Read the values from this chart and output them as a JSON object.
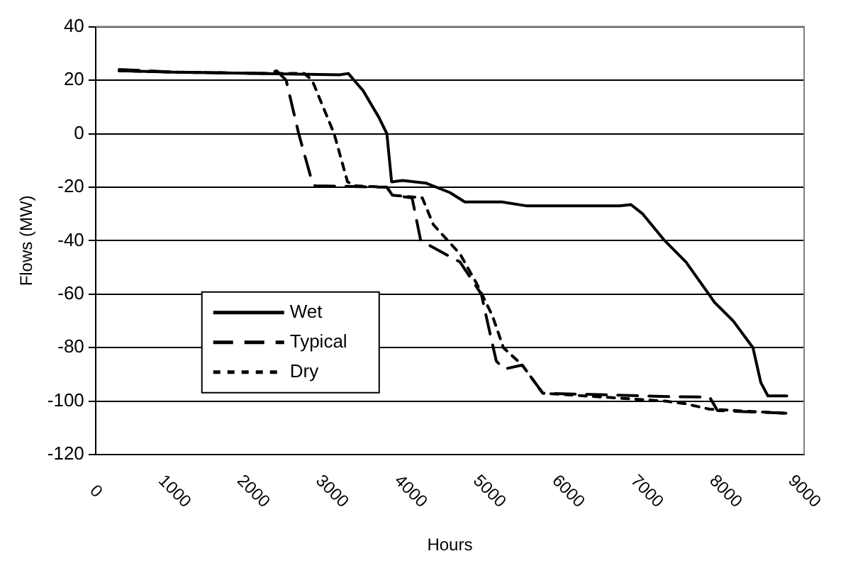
{
  "chart_data": {
    "type": "line",
    "xlabel": "Hours",
    "ylabel": "Flows (MW)",
    "xlim": [
      0,
      9000
    ],
    "xticks": [
      0,
      1000,
      2000,
      3000,
      4000,
      5000,
      6000,
      7000,
      8000,
      9000
    ],
    "ylim": [
      -120,
      40
    ],
    "yticks": [
      -120,
      -100,
      -80,
      -60,
      -40,
      -20,
      0,
      20,
      40
    ],
    "grid": "y",
    "legend": "bottom left",
    "marker": "none",
    "series": [
      {
        "name": "Wet",
        "color": "#000000",
        "line_style": "solid",
        "x": [
          300,
          1000,
          2000,
          3100,
          3210,
          3400,
          3600,
          3700,
          3760,
          3900,
          4200,
          4500,
          4690,
          5160,
          5480,
          6660,
          6800,
          6950,
          7230,
          7500,
          7790,
          7860,
          8100,
          8350,
          8450,
          8540,
          8780
        ],
        "values": [
          23.5,
          23,
          22.5,
          22,
          22.5,
          16,
          6,
          0,
          -18,
          -17.5,
          -18.5,
          -22,
          -25.5,
          -25.5,
          -27,
          -27,
          -26.5,
          -30,
          -40,
          -48,
          -60,
          -63,
          -70,
          -80,
          -93,
          -98,
          -98
        ]
      },
      {
        "name": "Typical",
        "color": "#000000",
        "line_style": "dashed",
        "x": [
          300,
          1000,
          2200,
          2300,
          2420,
          2580,
          2750,
          2790,
          3700,
          3770,
          4020,
          4130,
          4630,
          4900,
          4990,
          5090,
          5190,
          5420,
          5680,
          7190,
          7800,
          7900,
          8780
        ],
        "values": [
          24,
          23,
          22.5,
          23.5,
          20,
          0,
          -18,
          -19.5,
          -20,
          -23,
          -24,
          -40,
          -48,
          -60,
          -72,
          -85,
          -88,
          -86.5,
          -97,
          -98.2,
          -98.5,
          -103.5,
          -104.5
        ]
      },
      {
        "name": "Dry",
        "color": "#000000",
        "line_style": "dotted",
        "x": [
          300,
          1000,
          2200,
          2650,
          2750,
          3030,
          3200,
          3300,
          3700,
          3770,
          4150,
          4290,
          4630,
          4840,
          5040,
          5180,
          5420,
          5680,
          7250,
          7500,
          7800,
          8780
        ],
        "values": [
          23.5,
          23,
          22.5,
          22.5,
          20,
          0,
          -18,
          -19.5,
          -20,
          -23,
          -24,
          -34,
          -45,
          -56,
          -68,
          -80,
          -86.5,
          -97,
          -100,
          -101,
          -103,
          -104.5
        ]
      }
    ]
  }
}
